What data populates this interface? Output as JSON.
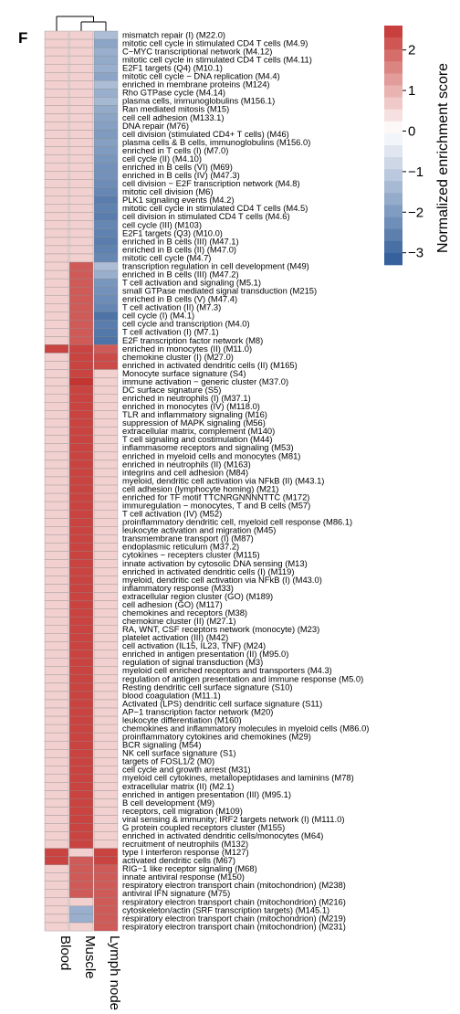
{
  "panel_label": "F",
  "chart_data": {
    "type": "heatmap",
    "columns": [
      "Blood",
      "Muscle",
      "Lymph node"
    ],
    "rows": [
      "mismatch repair (I) (M22.0)",
      "mitotic cell cycle in stimulated CD4 T cells (M4.9)",
      "C−MYC transcriptional network (M4.12)",
      "mitotic cell cycle in stimulated CD4 T cells (M4.11)",
      "E2F1 targets (Q4) (M10.1)",
      "mitotic cell cycle − DNA replication (M4.4)",
      "enriched in membrane proteins (M124)",
      "Rho GTPase cycle (M4.14)",
      "plasma cells, immunoglobulins (M156.1)",
      "Ran mediated mitosis (M15)",
      "cell cell adhesion (M133.1)",
      "DNA repair (M76)",
      "cell division (stimulated CD4+ T cells) (M46)",
      "plasma cells & B cells, immunoglobulins (M156.0)",
      "enriched in T cells (I) (M7.0)",
      "cell cycle (II) (M4.10)",
      "enriched in B cells (VI) (M69)",
      "enriched in B cells (IV) (M47.3)",
      "cell division − E2F transcription network (M4.8)",
      "mitotic cell division (M6)",
      "PLK1 signaling events (M4.2)",
      "mitotic cell cycle in stimulated CD4 T cells (M4.5)",
      "cell division in stimulated CD4 T cells (M4.6)",
      "cell cycle (III) (M103)",
      "E2F1 targets (Q3) (M10.0)",
      "enriched in B cells (III) (M47.1)",
      "enriched in B cells (II) (M47.0)",
      "mitotic cell cycle (M4.7)",
      "transcription regulation in cell development (M49)",
      "enriched in B cells (III) (M47.2)",
      "T cell activation and signaling (M5.1)",
      "small GTPase mediated signal transduction (M215)",
      "enriched in B cells (V) (M47.4)",
      "T cell activation (II) (M7.3)",
      "cell cycle (I) (M4.1)",
      "cell cycle and transcription (M4.0)",
      "T cell activation (I) (M7.1)",
      "E2F transcription factor network (M8)",
      "enriched in monocytes (II) (M11.0)",
      "chemokine cluster (I) (M27.0)",
      "enriched in activated dendritic cells (II) (M165)",
      "Monocyte surface signature (S4)",
      "immune activation − generic cluster (M37.0)",
      "DC surface signature (S5)",
      "enriched in neutrophils (I) (M37.1)",
      "enriched in monocytes (IV) (M118.0)",
      "TLR and inflammatory signaling (M16)",
      "suppression of MAPK signaling (M56)",
      "extracellular matrix, complement (M140)",
      "T cell signaling and costimulation (M44)",
      "inflammasome receptors and signaling (M53)",
      "enriched in myeloid cells and monocytes (M81)",
      "enriched in neutrophils (II) (M163)",
      "integrins and cell adhesion (M84)",
      "myeloid, dendritic cell activation via NFkB (II) (M43.1)",
      "cell adhesion (lymphocyte homing) (M21)",
      "enriched for TF motif TTCNRGNNNNTTC (M172)",
      "immuregulation − monocytes, T and B cells (M57)",
      "T cell activation (IV) (M52)",
      "proinflammatory dendritic cell, myeloid cell response (M86.1)",
      "leukocyte activation and migration (M45)",
      "transmembrane transport (I) (M87)",
      "endoplasmic reticulum (M37.2)",
      "cytokines − recepters cluster (M115)",
      "innate activation by cytosolic DNA sensing (M13)",
      "enriched in activated dendritic cells (I) (M119)",
      "myeloid, dendritic cell activation via NFkB (I) (M43.0)",
      "inflammatory response (M33)",
      "extracellular region cluster (GO) (M189)",
      "cell adhesion (GO) (M117)",
      "chemokines and receptors (M38)",
      "chemokine cluster (II) (M27.1)",
      "RA, WNT, CSF receptors network (monocyte) (M23)",
      "platelet activation (III) (M42)",
      "cell activation (IL15, IL23, TNF) (M24)",
      "enriched in antigen presentation (II) (M95.0)",
      "regulation of signal transduction (M3)",
      "myeloid cell enriched receptors and transporters (M4.3)",
      "regulation of antigen presentation and immune response (M5.0)",
      "Resting dendritic cell surface signature (S10)",
      "blood coagulation (M11.1)",
      "Activated (LPS) dendritic cell surface signature (S11)",
      "AP−1 transcription factor network (M20)",
      "leukocyte differentiation (M160)",
      "chemokines and inflammatory molecules in myeloid cells (M86.0)",
      "proinflammatory cytokines and chemokines (M29)",
      "BCR signaling (M54)",
      "NK cell surface signature (S1)",
      "targets of FOSL1/2 (M0)",
      "cell cycle and growth arrest (M31)",
      "myeloid cell cytokines, metallopeptidases and laminins (M78)",
      "extracellular matrix (II) (M2.1)",
      "enriched in antigen presentation (III) (M95.1)",
      "B cell development (M9)",
      "receptors, cell migration (M109)",
      "viral sensing & immunity; IRF2 targets network (I) (M111.0)",
      "G protein coupled receptors cluster (M155)",
      "enriched in activated dendritic cells/monocytes (M64)",
      "recruitment of neutrophils (M132)",
      "type I interferon response (M127)",
      "activated dendritic cells (M67)",
      "RIG−1 like receptor signaling (M68)",
      "innate antiviral response (M150)",
      "respiratory electron transport chain (mitochondrion) (M238)",
      "antiviral IFN signature (M75)",
      "respiratory electron transport chain (mitochondrion) (M216)",
      "cytoskeleton/actin (SRF transcription targets) (M145.1)",
      "respiratory electron transport chain (mitochondrion) (M219)",
      "respiratory electron transport chain (mitochondrion) (M231)"
    ],
    "values": {
      "Blood": [
        0.6,
        0.6,
        0.6,
        0.6,
        0.6,
        0.6,
        0.6,
        0.6,
        0.6,
        0.6,
        0.6,
        0.6,
        0.6,
        0.6,
        0.6,
        0.6,
        0.6,
        0.6,
        0.6,
        0.6,
        0.6,
        0.6,
        0.6,
        0.6,
        0.6,
        0.6,
        0.6,
        0.6,
        0.6,
        0.6,
        0.6,
        0.6,
        0.6,
        0.6,
        0.6,
        0.6,
        0.6,
        0.6,
        2.4,
        0.6,
        0.6,
        0.6,
        0.6,
        0.6,
        0.6,
        0.6,
        0.6,
        0.6,
        0.6,
        0.6,
        0.6,
        0.6,
        0.6,
        0.6,
        0.6,
        0.6,
        0.6,
        0.6,
        0.6,
        0.6,
        0.6,
        0.6,
        0.6,
        0.6,
        0.6,
        0.6,
        0.6,
        0.6,
        0.6,
        0.6,
        0.6,
        0.6,
        0.6,
        0.6,
        0.6,
        0.6,
        0.6,
        0.6,
        0.6,
        0.6,
        0.6,
        0.6,
        0.6,
        0.6,
        0.6,
        0.6,
        0.6,
        0.6,
        0.6,
        0.6,
        0.6,
        0.6,
        0.6,
        0.6,
        0.6,
        0.6,
        0.6,
        0.6,
        0.6,
        2.4,
        2.4,
        0.6,
        0.6,
        0.6,
        0.6,
        0.6,
        0.6,
        0.6,
        0.6
      ],
      "Muscle": [
        0.6,
        0.6,
        0.6,
        0.6,
        0.6,
        0.6,
        0.6,
        0.6,
        0.6,
        0.6,
        0.6,
        0.6,
        0.6,
        0.6,
        0.6,
        0.6,
        0.6,
        0.6,
        0.6,
        0.6,
        0.6,
        0.6,
        0.6,
        0.6,
        0.6,
        0.6,
        0.6,
        0.6,
        2.1,
        2.1,
        2.1,
        2.1,
        2.1,
        2.1,
        2.1,
        2.1,
        2.1,
        2.1,
        2.4,
        2.4,
        2.4,
        2.4,
        2.6,
        2.4,
        2.4,
        2.4,
        2.4,
        2.4,
        2.4,
        2.4,
        2.4,
        2.4,
        2.4,
        2.4,
        2.4,
        2.4,
        2.4,
        2.4,
        2.4,
        2.4,
        2.4,
        2.4,
        2.4,
        2.4,
        2.4,
        2.4,
        2.4,
        2.4,
        2.4,
        2.4,
        2.4,
        2.4,
        2.4,
        2.4,
        2.4,
        2.4,
        2.4,
        2.4,
        2.4,
        2.4,
        2.4,
        2.4,
        2.4,
        2.4,
        2.4,
        2.4,
        2.4,
        2.4,
        2.4,
        2.4,
        2.4,
        2.4,
        2.4,
        2.4,
        2.4,
        2.4,
        2.4,
        2.4,
        2.4,
        0.6,
        2.1,
        2.1,
        2.1,
        2.1,
        2.1,
        0.6,
        -1.6,
        -1.6,
        0.6
      ],
      "Lymph node": [
        -1.3,
        -1.8,
        -1.6,
        -1.7,
        -1.6,
        -1.8,
        -1.3,
        -1.6,
        -1.4,
        -1.7,
        -1.8,
        -1.9,
        -2.0,
        -1.9,
        -2.0,
        -2.1,
        -2.2,
        -2.2,
        -2.3,
        -2.4,
        -2.6,
        -2.5,
        -2.6,
        -2.4,
        -2.5,
        -2.6,
        -2.5,
        -2.4,
        -1.3,
        -1.6,
        -2.1,
        -2.2,
        -2.3,
        -2.4,
        -2.8,
        -2.6,
        -2.7,
        -2.8,
        2.1,
        2.3,
        2.3,
        0.6,
        0.6,
        0.6,
        0.6,
        0.6,
        0.6,
        0.6,
        0.6,
        0.6,
        0.6,
        0.6,
        0.6,
        0.6,
        0.6,
        0.6,
        0.6,
        0.6,
        0.6,
        0.6,
        0.6,
        0.6,
        0.6,
        0.6,
        0.6,
        0.6,
        0.6,
        0.6,
        0.6,
        0.6,
        0.6,
        0.6,
        0.6,
        0.6,
        0.6,
        0.6,
        0.6,
        0.6,
        0.6,
        0.6,
        0.6,
        0.6,
        0.6,
        0.6,
        0.6,
        0.6,
        0.6,
        0.6,
        0.6,
        0.6,
        0.6,
        0.6,
        0.6,
        0.6,
        0.6,
        0.6,
        0.6,
        0.6,
        0.6,
        2.4,
        2.4,
        2.1,
        2.1,
        2.1,
        2.1,
        2.1,
        2.1,
        2.1,
        2.1
      ]
    },
    "colorbar": {
      "title": "Normalized enrichment score",
      "ticks": [
        2,
        1,
        0,
        -1,
        -2,
        -3
      ],
      "tick_labels": [
        "2",
        "1",
        "0",
        "−1",
        "−2",
        "−3"
      ],
      "range": [
        -3.3,
        2.6
      ]
    },
    "colors": {
      "negative": "#2d5a97",
      "neutral": "#ffffff",
      "positive": "#c43431"
    },
    "dendrogram": "columns"
  }
}
